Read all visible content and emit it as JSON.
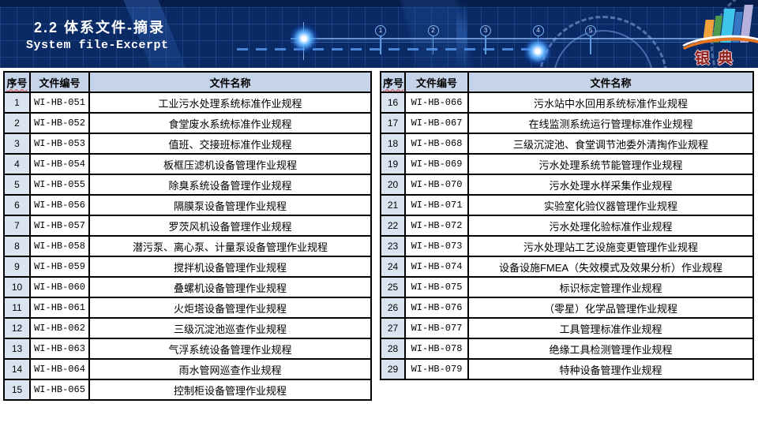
{
  "slide": {
    "title_cn": "2.2 体系文件-摘录",
    "title_en": "System file-Excerpt"
  },
  "banner": {
    "bg_color": "#0a2a66",
    "grid_color": "#2a4f8f",
    "glow_color": "#5fb2ff",
    "timeline_numbers": [
      "1",
      "2",
      "3",
      "4",
      "5"
    ]
  },
  "logo": {
    "text": "银典",
    "text_color": "#8f1e1e",
    "arc_color": "#e8731e",
    "bar_colors": [
      "#f2a03c",
      "#4e9b4e",
      "#3fc6ea",
      "#3577c2",
      "#b5b0dc"
    ]
  },
  "table_style": {
    "header_bg": "#c6d4e9",
    "index_bg": "#dae4f1",
    "border_color": "#000000"
  },
  "tables": {
    "headers": {
      "index": "序号",
      "code": "文件编号",
      "name": "文件名称"
    },
    "left_rows": [
      {
        "n": "1",
        "code": "WI-HB-051",
        "name": "工业污水处理系统标准作业规程"
      },
      {
        "n": "2",
        "code": "WI-HB-052",
        "name": "食堂废水系统标准作业规程"
      },
      {
        "n": "3",
        "code": "WI-HB-053",
        "name": "值班、交接班标准作业规程"
      },
      {
        "n": "4",
        "code": "WI-HB-054",
        "name": "板框压滤机设备管理作业规程"
      },
      {
        "n": "5",
        "code": "WI-HB-055",
        "name": "除臭系统设备管理作业规程"
      },
      {
        "n": "6",
        "code": "WI-HB-056",
        "name": "隔膜泵设备管理作业规程"
      },
      {
        "n": "7",
        "code": "WI-HB-057",
        "name": "罗茨风机设备管理作业规程"
      },
      {
        "n": "8",
        "code": "WI-HB-058",
        "name": "潜污泵、离心泵、计量泵设备管理作业规程"
      },
      {
        "n": "9",
        "code": "WI-HB-059",
        "name": "搅拌机设备管理作业规程"
      },
      {
        "n": "10",
        "code": "WI-HB-060",
        "name": "叠螺机设备管理作业规程"
      },
      {
        "n": "11",
        "code": "WI-HB-061",
        "name": "火炬塔设备管理作业规程"
      },
      {
        "n": "12",
        "code": "WI-HB-062",
        "name": "三级沉淀池巡查作业规程"
      },
      {
        "n": "13",
        "code": "WI-HB-063",
        "name": "气浮系统设备管理作业规程"
      },
      {
        "n": "14",
        "code": "WI-HB-064",
        "name": "雨水管网巡查作业规程"
      },
      {
        "n": "15",
        "code": "WI-HB-065",
        "name": "控制柜设备管理作业规程"
      }
    ],
    "right_rows": [
      {
        "n": "16",
        "code": "WI-HB-066",
        "name": "污水站中水回用系统标准作业规程"
      },
      {
        "n": "17",
        "code": "WI-HB-067",
        "name": "在线监测系统运行管理标准作业规程"
      },
      {
        "n": "18",
        "code": "WI-HB-068",
        "name": "三级沉淀池、食堂调节池委外清掏作业规程"
      },
      {
        "n": "19",
        "code": "WI-HB-069",
        "name": "污水处理系统节能管理作业规程"
      },
      {
        "n": "20",
        "code": "WI-HB-070",
        "name": "污水处理水样采集作业规程"
      },
      {
        "n": "21",
        "code": "WI-HB-071",
        "name": "实验室化验仪器管理作业规程"
      },
      {
        "n": "22",
        "code": "WI-HB-072",
        "name": "污水处理化验标准作业规程"
      },
      {
        "n": "23",
        "code": "WI-HB-073",
        "name": "污水处理站工艺设施变更管理作业规程"
      },
      {
        "n": "24",
        "code": "WI-HB-074",
        "name": "设备设施FMEA（失效模式及效果分析）作业规程"
      },
      {
        "n": "25",
        "code": "WI-HB-075",
        "name": "标识标定管理作业规程"
      },
      {
        "n": "26",
        "code": "WI-HB-076",
        "name": "（零星）化学品管理作业规程"
      },
      {
        "n": "27",
        "code": "WI-HB-077",
        "name": "工具管理标准作业规程"
      },
      {
        "n": "28",
        "code": "WI-HB-078",
        "name": "绝缘工具检测管理作业规程"
      },
      {
        "n": "29",
        "code": "WI-HB-079",
        "name": "特种设备管理作业规程"
      }
    ]
  }
}
